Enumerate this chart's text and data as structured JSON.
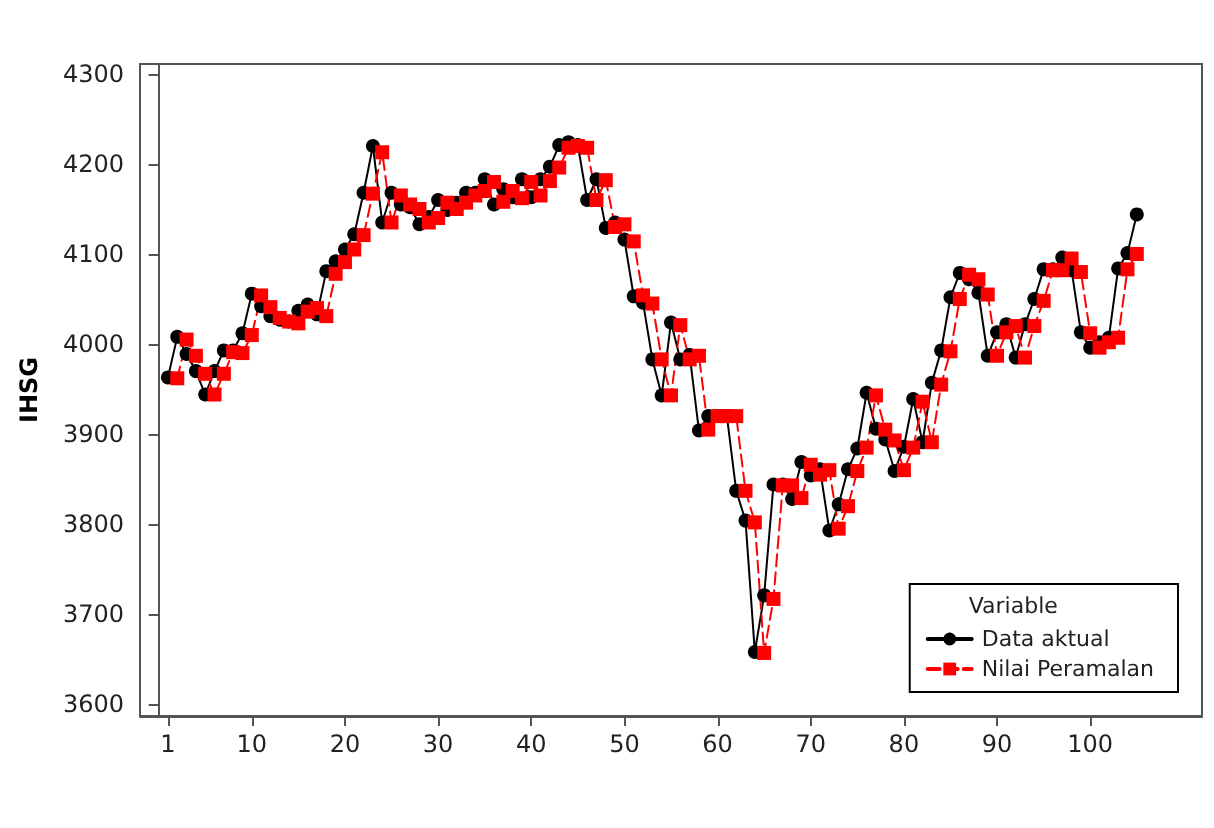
{
  "chart_data": {
    "type": "line",
    "ylabel": "IHSG",
    "legend_title": "Variable",
    "legend": "bottom right",
    "grid": false,
    "xlim": [
      -2,
      112
    ],
    "xticks": [
      1,
      10,
      20,
      30,
      40,
      50,
      60,
      70,
      80,
      90,
      100
    ],
    "ylim": [
      3587,
      4311
    ],
    "yticks": [
      3600,
      3700,
      3800,
      3900,
      4000,
      4100,
      4200,
      4300
    ],
    "series": [
      {
        "name": "Data aktual",
        "color": "#000000",
        "marker": "circle",
        "line_style": "solid",
        "x": [
          1,
          2,
          3,
          4,
          5,
          6,
          7,
          8,
          9,
          10,
          11,
          12,
          13,
          14,
          15,
          16,
          17,
          18,
          19,
          20,
          21,
          22,
          23,
          24,
          25,
          26,
          27,
          28,
          29,
          30,
          31,
          32,
          33,
          34,
          35,
          36,
          37,
          38,
          39,
          40,
          41,
          42,
          43,
          44,
          45,
          46,
          47,
          48,
          49,
          50,
          51,
          52,
          53,
          54,
          55,
          56,
          57,
          58,
          59,
          60,
          61,
          62,
          63,
          64,
          65,
          66,
          67,
          68,
          69,
          70,
          71,
          72,
          73,
          74,
          75,
          76,
          77,
          78,
          79,
          80,
          81,
          82,
          83,
          84,
          85,
          86,
          87,
          88,
          89,
          90,
          91,
          92,
          93,
          94,
          95,
          96,
          97,
          98,
          99,
          100,
          101,
          102,
          103,
          104,
          105
        ],
        "values": [
          3963,
          4008,
          3989,
          3970,
          3944,
          3970,
          3993,
          3993,
          4012,
          4056,
          4042,
          4031,
          4027,
          4025,
          4037,
          4044,
          4033,
          4081,
          4092,
          4105,
          4122,
          4168,
          4220,
          4135,
          4168,
          4155,
          4152,
          4133,
          4141,
          4160,
          4149,
          4157,
          4168,
          4168,
          4183,
          4155,
          4172,
          4163,
          4183,
          4163,
          4183,
          4197,
          4221,
          4224,
          4221,
          4160,
          4183,
          4129,
          4135,
          4116,
          4053,
          4046,
          3983,
          3943,
          4024,
          3983,
          3988,
          3904,
          3920,
          3920,
          3920,
          3837,
          3804,
          3658,
          3721,
          3844,
          3844,
          3828,
          3869,
          3854,
          3861,
          3793,
          3822,
          3861,
          3884,
          3946,
          3906,
          3894,
          3859,
          3886,
          3939,
          3891,
          3957,
          3993,
          4052,
          4079,
          4072,
          4057,
          3987,
          4013,
          4022,
          3985,
          4022,
          4050,
          4083,
          4083,
          4096,
          4082,
          4013,
          3996,
          4002,
          4007,
          4084,
          4101,
          4144
        ]
      },
      {
        "name": "Nilai Peramalan",
        "color": "#ff0000",
        "marker": "square",
        "line_style": "dashed",
        "x": [
          2,
          3,
          4,
          5,
          6,
          7,
          8,
          9,
          10,
          11,
          12,
          13,
          14,
          15,
          16,
          17,
          18,
          19,
          20,
          21,
          22,
          23,
          24,
          25,
          26,
          27,
          28,
          29,
          30,
          31,
          32,
          33,
          34,
          35,
          36,
          37,
          38,
          39,
          40,
          41,
          42,
          43,
          44,
          45,
          46,
          47,
          48,
          49,
          50,
          51,
          52,
          53,
          54,
          55,
          56,
          57,
          58,
          59,
          60,
          61,
          62,
          63,
          64,
          65,
          66,
          67,
          68,
          69,
          70,
          71,
          72,
          73,
          74,
          75,
          76,
          77,
          78,
          79,
          80,
          81,
          82,
          83,
          84,
          85,
          86,
          87,
          88,
          89,
          90,
          91,
          92,
          93,
          94,
          95,
          96,
          97,
          98,
          99,
          100,
          101,
          102,
          103,
          104,
          105
        ],
        "values": [
          3962,
          4005,
          3987,
          3967,
          3944,
          3967,
          3991,
          3990,
          4010,
          4054,
          4041,
          4029,
          4025,
          4023,
          4036,
          4040,
          4031,
          4078,
          4091,
          4105,
          4121,
          4167,
          4213,
          4135,
          4165,
          4155,
          4150,
          4135,
          4140,
          4157,
          4150,
          4157,
          4165,
          4170,
          4180,
          4158,
          4170,
          4162,
          4180,
          4165,
          4181,
          4196,
          4218,
          4220,
          4218,
          4160,
          4182,
          4130,
          4133,
          4114,
          4054,
          4045,
          3983,
          3943,
          4021,
          3983,
          3987,
          3905,
          3920,
          3920,
          3920,
          3837,
          3802,
          3657,
          3717,
          3843,
          3843,
          3829,
          3866,
          3855,
          3860,
          3795,
          3820,
          3859,
          3885,
          3943,
          3905,
          3893,
          3860,
          3885,
          3936,
          3891,
          3955,
          3992,
          4050,
          4077,
          4072,
          4055,
          3987,
          4013,
          4020,
          3985,
          4020,
          4048,
          4082,
          4082,
          4095,
          4080,
          4012,
          3996,
          4002,
          4007,
          4083,
          4100
        ]
      }
    ]
  }
}
